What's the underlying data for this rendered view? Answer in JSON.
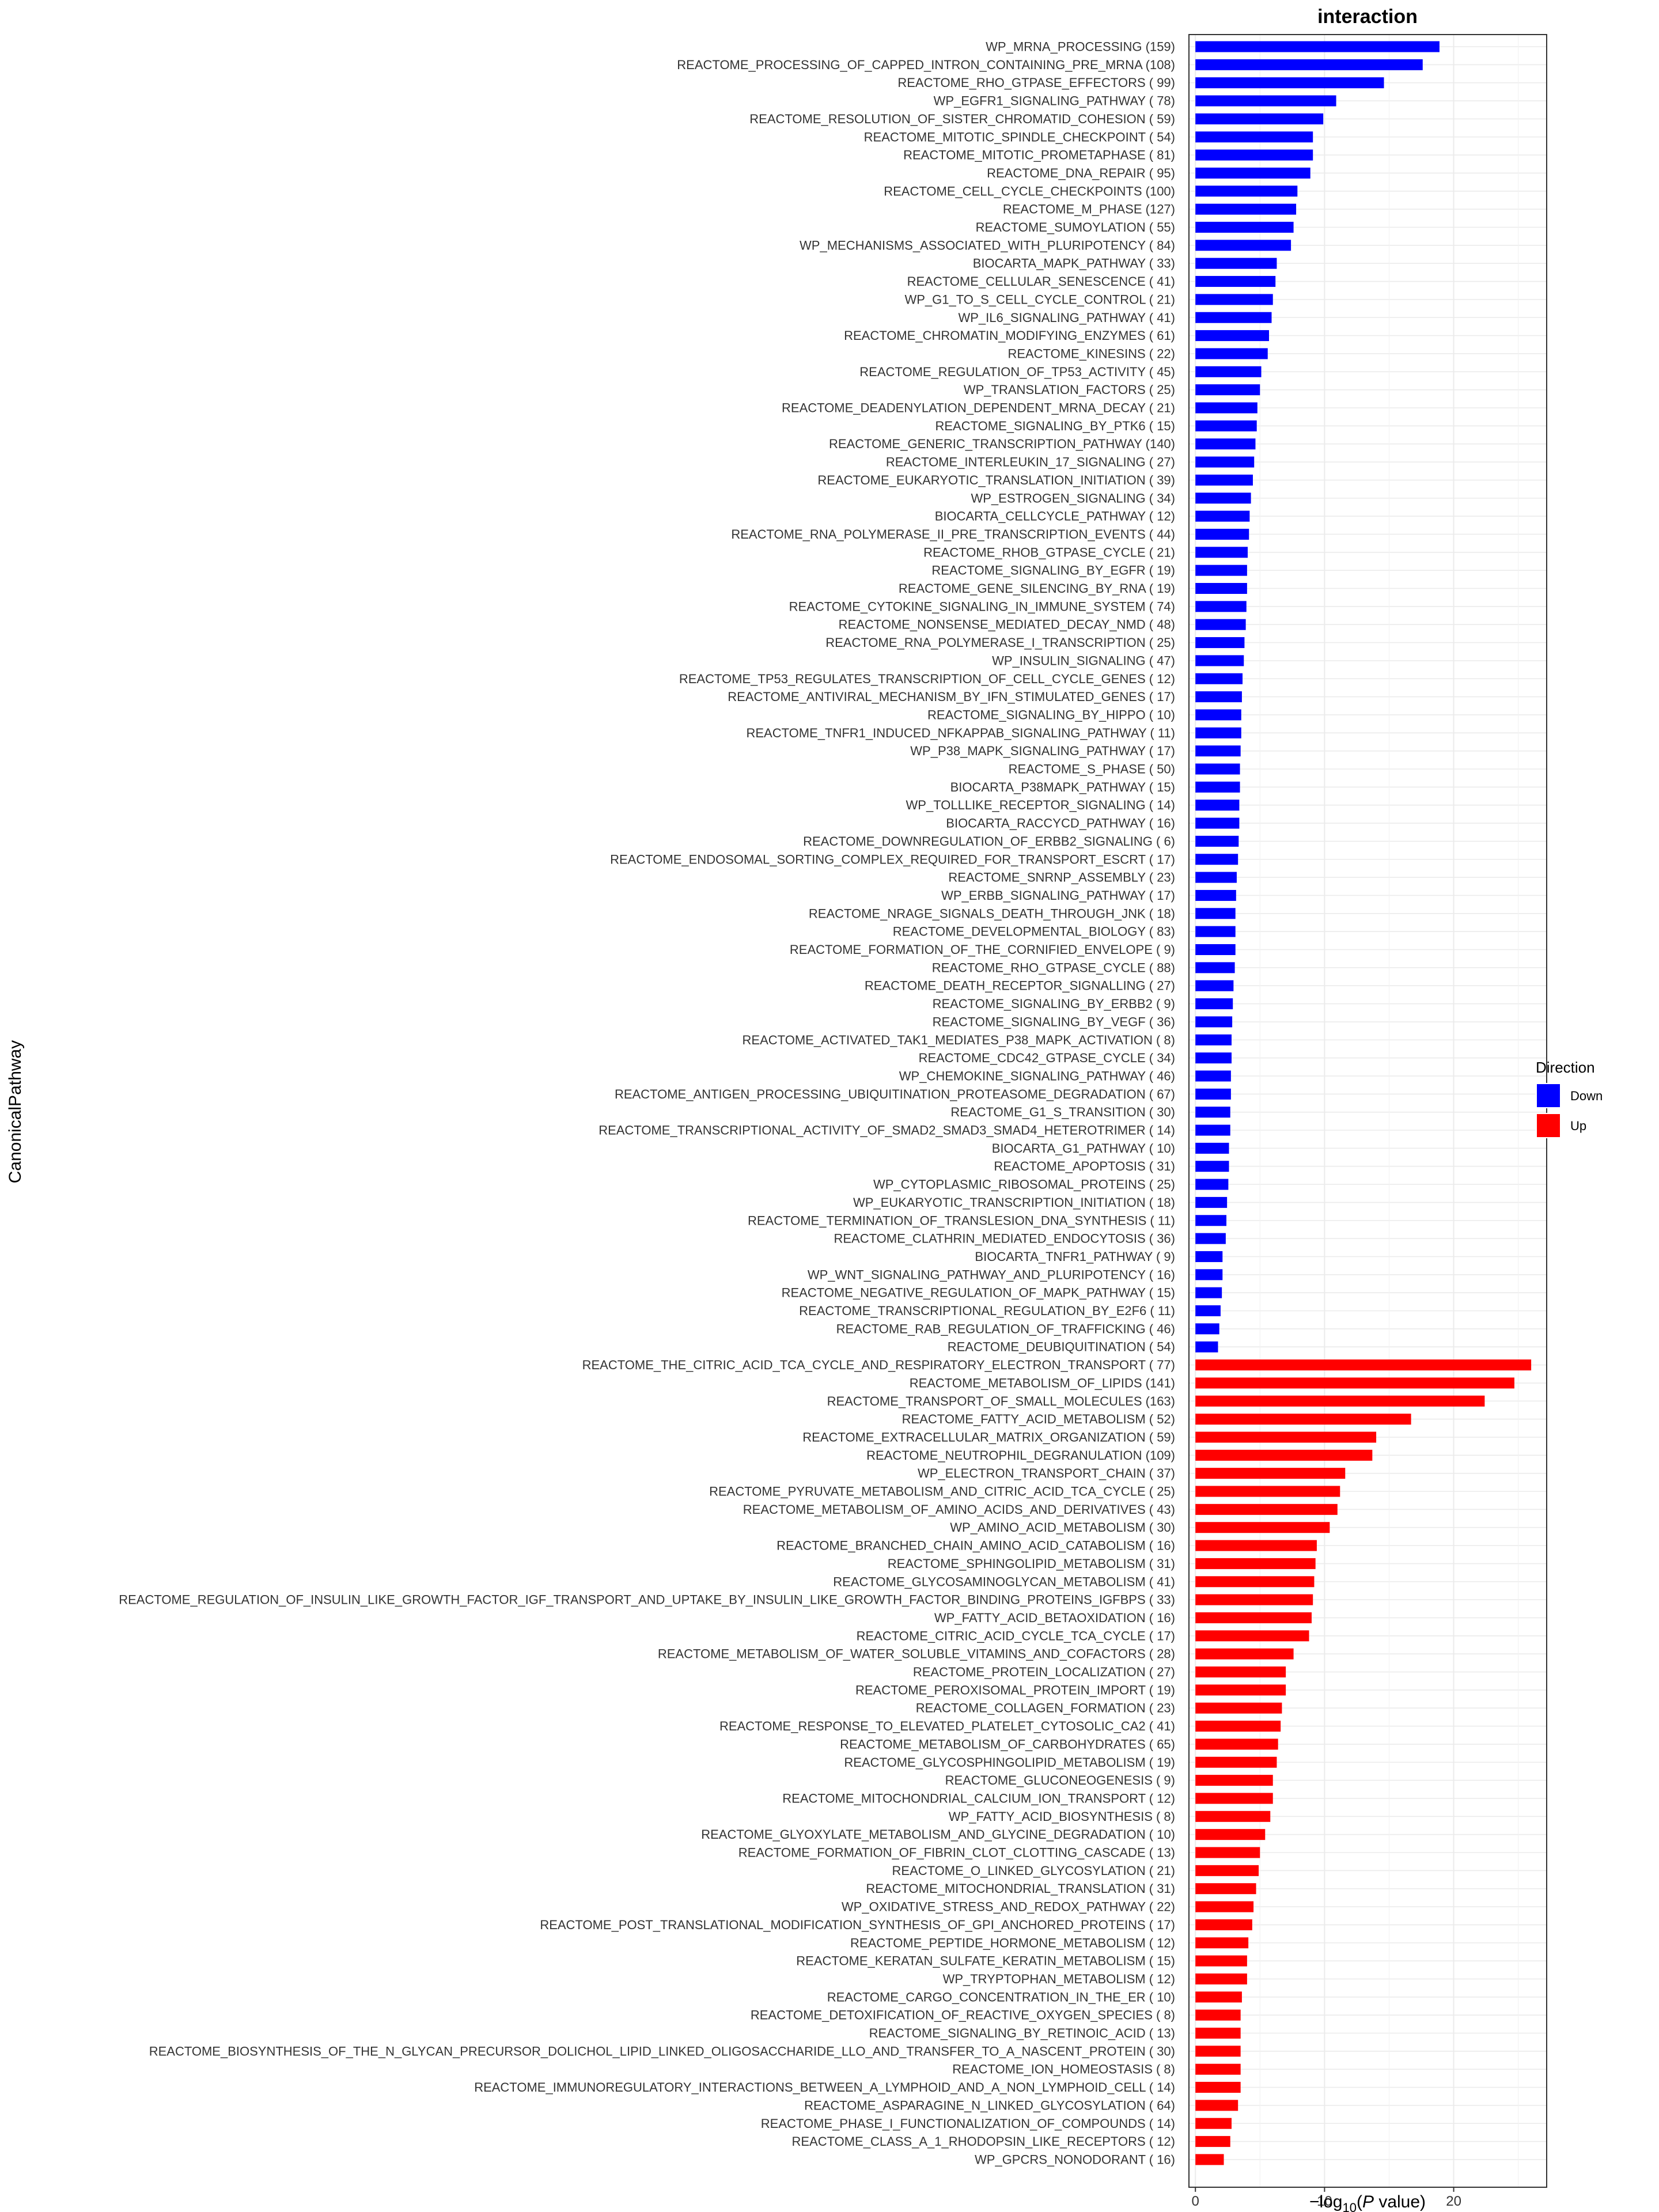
{
  "chart_data": {
    "type": "bar",
    "orientation": "horizontal",
    "title": "interaction",
    "xlabel": "−log10(P value)",
    "xlabel_parts": {
      "prefix": "−log",
      "subscript": "10",
      "open": "(",
      "italic": "P",
      "suffix": " value)"
    },
    "ylabel": "CanonicalPathway",
    "xlim": [
      -0.5,
      27.2
    ],
    "xticks": [
      0,
      10,
      20
    ],
    "grid": true,
    "legend": {
      "title": "Direction",
      "placement": "right",
      "entries": [
        {
          "label": "Down",
          "color": "#0000FF"
        },
        {
          "label": "Up",
          "color": "#FF0000"
        }
      ]
    },
    "series": [
      {
        "name": "Down",
        "color": "#0000FF",
        "categories": [
          "WP_MRNA_PROCESSING (159)",
          "REACTOME_PROCESSING_OF_CAPPED_INTRON_CONTAINING_PRE_MRNA (108)",
          "REACTOME_RHO_GTPASE_EFFECTORS ( 99)",
          "WP_EGFR1_SIGNALING_PATHWAY ( 78)",
          "REACTOME_RESOLUTION_OF_SISTER_CHROMATID_COHESION ( 59)",
          "REACTOME_MITOTIC_SPINDLE_CHECKPOINT ( 54)",
          "REACTOME_MITOTIC_PROMETAPHASE ( 81)",
          "REACTOME_DNA_REPAIR ( 95)",
          "REACTOME_CELL_CYCLE_CHECKPOINTS (100)",
          "REACTOME_M_PHASE (127)",
          "REACTOME_SUMOYLATION ( 55)",
          "WP_MECHANISMS_ASSOCIATED_WITH_PLURIPOTENCY ( 84)",
          "BIOCARTA_MAPK_PATHWAY ( 33)",
          "REACTOME_CELLULAR_SENESCENCE ( 41)",
          "WP_G1_TO_S_CELL_CYCLE_CONTROL ( 21)",
          "WP_IL6_SIGNALING_PATHWAY ( 41)",
          "REACTOME_CHROMATIN_MODIFYING_ENZYMES ( 61)",
          "REACTOME_KINESINS ( 22)",
          "REACTOME_REGULATION_OF_TP53_ACTIVITY ( 45)",
          "WP_TRANSLATION_FACTORS ( 25)",
          "REACTOME_DEADENYLATION_DEPENDENT_MRNA_DECAY ( 21)",
          "REACTOME_SIGNALING_BY_PTK6 ( 15)",
          "REACTOME_GENERIC_TRANSCRIPTION_PATHWAY (140)",
          "REACTOME_INTERLEUKIN_17_SIGNALING ( 27)",
          "REACTOME_EUKARYOTIC_TRANSLATION_INITIATION ( 39)",
          "WP_ESTROGEN_SIGNALING ( 34)",
          "BIOCARTA_CELLCYCLE_PATHWAY ( 12)",
          "REACTOME_RNA_POLYMERASE_II_PRE_TRANSCRIPTION_EVENTS ( 44)",
          "REACTOME_RHOB_GTPASE_CYCLE ( 21)",
          "REACTOME_SIGNALING_BY_EGFR ( 19)",
          "REACTOME_GENE_SILENCING_BY_RNA ( 19)",
          "REACTOME_CYTOKINE_SIGNALING_IN_IMMUNE_SYSTEM ( 74)",
          "REACTOME_NONSENSE_MEDIATED_DECAY_NMD ( 48)",
          "REACTOME_RNA_POLYMERASE_I_TRANSCRIPTION ( 25)",
          "WP_INSULIN_SIGNALING ( 47)",
          "REACTOME_TP53_REGULATES_TRANSCRIPTION_OF_CELL_CYCLE_GENES ( 12)",
          "REACTOME_ANTIVIRAL_MECHANISM_BY_IFN_STIMULATED_GENES ( 17)",
          "REACTOME_SIGNALING_BY_HIPPO ( 10)",
          "REACTOME_TNFR1_INDUCED_NFKAPPAB_SIGNALING_PATHWAY ( 11)",
          "WP_P38_MAPK_SIGNALING_PATHWAY ( 17)",
          "REACTOME_S_PHASE ( 50)",
          "BIOCARTA_P38MAPK_PATHWAY ( 15)",
          "WP_TOLLLIKE_RECEPTOR_SIGNALING ( 14)",
          "BIOCARTA_RACCYCD_PATHWAY ( 16)",
          "REACTOME_DOWNREGULATION_OF_ERBB2_SIGNALING (  6)",
          "REACTOME_ENDOSOMAL_SORTING_COMPLEX_REQUIRED_FOR_TRANSPORT_ESCRT ( 17)",
          "REACTOME_SNRNP_ASSEMBLY ( 23)",
          "WP_ERBB_SIGNALING_PATHWAY ( 17)",
          "REACTOME_NRAGE_SIGNALS_DEATH_THROUGH_JNK ( 18)",
          "REACTOME_DEVELOPMENTAL_BIOLOGY ( 83)",
          "REACTOME_FORMATION_OF_THE_CORNIFIED_ENVELOPE (  9)",
          "REACTOME_RHO_GTPASE_CYCLE ( 88)",
          "REACTOME_DEATH_RECEPTOR_SIGNALLING ( 27)",
          "REACTOME_SIGNALING_BY_ERBB2 (  9)",
          "REACTOME_SIGNALING_BY_VEGF ( 36)",
          "REACTOME_ACTIVATED_TAK1_MEDIATES_P38_MAPK_ACTIVATION (  8)",
          "REACTOME_CDC42_GTPASE_CYCLE ( 34)",
          "WP_CHEMOKINE_SIGNALING_PATHWAY ( 46)",
          "REACTOME_ANTIGEN_PROCESSING_UBIQUITINATION_PROTEASOME_DEGRADATION ( 67)",
          "REACTOME_G1_S_TRANSITION ( 30)",
          "REACTOME_TRANSCRIPTIONAL_ACTIVITY_OF_SMAD2_SMAD3_SMAD4_HETEROTRIMER ( 14)",
          "BIOCARTA_G1_PATHWAY ( 10)",
          "REACTOME_APOPTOSIS ( 31)",
          "WP_CYTOPLASMIC_RIBOSOMAL_PROTEINS ( 25)",
          "WP_EUKARYOTIC_TRANSCRIPTION_INITIATION ( 18)",
          "REACTOME_TERMINATION_OF_TRANSLESION_DNA_SYNTHESIS ( 11)",
          "REACTOME_CLATHRIN_MEDIATED_ENDOCYTOSIS ( 36)",
          "BIOCARTA_TNFR1_PATHWAY (  9)",
          "WP_WNT_SIGNALING_PATHWAY_AND_PLURIPOTENCY ( 16)",
          "REACTOME_NEGATIVE_REGULATION_OF_MAPK_PATHWAY ( 15)",
          "REACTOME_TRANSCRIPTIONAL_REGULATION_BY_E2F6 ( 11)",
          "REACTOME_RAB_REGULATION_OF_TRAFFICKING ( 46)",
          "REACTOME_DEUBIQUITINATION ( 54)"
        ],
        "values": [
          18.9,
          17.6,
          14.6,
          10.9,
          9.9,
          9.1,
          9.1,
          8.9,
          7.9,
          7.8,
          7.6,
          7.4,
          6.3,
          6.2,
          6.0,
          5.9,
          5.7,
          5.6,
          5.1,
          5.0,
          4.8,
          4.75,
          4.65,
          4.55,
          4.45,
          4.3,
          4.2,
          4.15,
          4.05,
          4.0,
          4.0,
          3.95,
          3.9,
          3.8,
          3.75,
          3.65,
          3.6,
          3.55,
          3.55,
          3.5,
          3.45,
          3.45,
          3.4,
          3.4,
          3.35,
          3.3,
          3.2,
          3.15,
          3.1,
          3.1,
          3.1,
          3.05,
          2.95,
          2.9,
          2.85,
          2.8,
          2.8,
          2.75,
          2.75,
          2.7,
          2.7,
          2.6,
          2.6,
          2.55,
          2.45,
          2.4,
          2.35,
          2.1,
          2.1,
          2.05,
          1.95,
          1.85,
          1.75
        ]
      },
      {
        "name": "Up",
        "color": "#FF0000",
        "categories": [
          "REACTOME_THE_CITRIC_ACID_TCA_CYCLE_AND_RESPIRATORY_ELECTRON_TRANSPORT ( 77)",
          "REACTOME_METABOLISM_OF_LIPIDS (141)",
          "REACTOME_TRANSPORT_OF_SMALL_MOLECULES (163)",
          "REACTOME_FATTY_ACID_METABOLISM ( 52)",
          "REACTOME_EXTRACELLULAR_MATRIX_ORGANIZATION ( 59)",
          "REACTOME_NEUTROPHIL_DEGRANULATION (109)",
          "WP_ELECTRON_TRANSPORT_CHAIN ( 37)",
          "REACTOME_PYRUVATE_METABOLISM_AND_CITRIC_ACID_TCA_CYCLE ( 25)",
          "REACTOME_METABOLISM_OF_AMINO_ACIDS_AND_DERIVATIVES ( 43)",
          "WP_AMINO_ACID_METABOLISM ( 30)",
          "REACTOME_BRANCHED_CHAIN_AMINO_ACID_CATABOLISM ( 16)",
          "REACTOME_SPHINGOLIPID_METABOLISM ( 31)",
          "REACTOME_GLYCOSAMINOGLYCAN_METABOLISM ( 41)",
          "REACTOME_REGULATION_OF_INSULIN_LIKE_GROWTH_FACTOR_IGF_TRANSPORT_AND_UPTAKE_BY_INSULIN_LIKE_GROWTH_FACTOR_BINDING_PROTEINS_IGFBPS ( 33)",
          "WP_FATTY_ACID_BETAOXIDATION ( 16)",
          "REACTOME_CITRIC_ACID_CYCLE_TCA_CYCLE ( 17)",
          "REACTOME_METABOLISM_OF_WATER_SOLUBLE_VITAMINS_AND_COFACTORS ( 28)",
          "REACTOME_PROTEIN_LOCALIZATION ( 27)",
          "REACTOME_PEROXISOMAL_PROTEIN_IMPORT ( 19)",
          "REACTOME_COLLAGEN_FORMATION ( 23)",
          "REACTOME_RESPONSE_TO_ELEVATED_PLATELET_CYTOSOLIC_CA2 ( 41)",
          "REACTOME_METABOLISM_OF_CARBOHYDRATES ( 65)",
          "REACTOME_GLYCOSPHINGOLIPID_METABOLISM ( 19)",
          "REACTOME_GLUCONEOGENESIS (  9)",
          "REACTOME_MITOCHONDRIAL_CALCIUM_ION_TRANSPORT ( 12)",
          "WP_FATTY_ACID_BIOSYNTHESIS (  8)",
          "REACTOME_GLYOXYLATE_METABOLISM_AND_GLYCINE_DEGRADATION ( 10)",
          "REACTOME_FORMATION_OF_FIBRIN_CLOT_CLOTTING_CASCADE ( 13)",
          "REACTOME_O_LINKED_GLYCOSYLATION ( 21)",
          "REACTOME_MITOCHONDRIAL_TRANSLATION ( 31)",
          "WP_OXIDATIVE_STRESS_AND_REDOX_PATHWAY ( 22)",
          "REACTOME_POST_TRANSLATIONAL_MODIFICATION_SYNTHESIS_OF_GPI_ANCHORED_PROTEINS ( 17)",
          "REACTOME_PEPTIDE_HORMONE_METABOLISM ( 12)",
          "REACTOME_KERATAN_SULFATE_KERATIN_METABOLISM ( 15)",
          "WP_TRYPTOPHAN_METABOLISM ( 12)",
          "REACTOME_CARGO_CONCENTRATION_IN_THE_ER ( 10)",
          "REACTOME_DETOXIFICATION_OF_REACTIVE_OXYGEN_SPECIES (  8)",
          "REACTOME_SIGNALING_BY_RETINOIC_ACID ( 13)",
          "REACTOME_BIOSYNTHESIS_OF_THE_N_GLYCAN_PRECURSOR_DOLICHOL_LIPID_LINKED_OLIGOSACCHARIDE_LLO_AND_TRANSFER_TO_A_NASCENT_PROTEIN ( 30)",
          "REACTOME_ION_HOMEOSTASIS (  8)",
          "REACTOME_IMMUNOREGULATORY_INTERACTIONS_BETWEEN_A_LYMPHOID_AND_A_NON_LYMPHOID_CELL ( 14)",
          "REACTOME_ASPARAGINE_N_LINKED_GLYCOSYLATION ( 64)",
          "REACTOME_PHASE_I_FUNCTIONALIZATION_OF_COMPOUNDS ( 14)",
          "REACTOME_CLASS_A_1_RHODOPSIN_LIKE_RECEPTORS ( 12)",
          "WP_GPCRS_NONODORANT ( 16)"
        ],
        "values": [
          26.0,
          24.7,
          22.4,
          16.7,
          14.0,
          13.7,
          11.6,
          11.2,
          11.0,
          10.4,
          9.4,
          9.3,
          9.2,
          9.1,
          9.0,
          8.8,
          7.6,
          7.0,
          7.0,
          6.7,
          6.6,
          6.4,
          6.3,
          6.0,
          6.0,
          5.8,
          5.4,
          5.0,
          4.9,
          4.7,
          4.5,
          4.4,
          4.1,
          4.0,
          4.0,
          3.6,
          3.5,
          3.5,
          3.5,
          3.5,
          3.5,
          3.3,
          2.8,
          2.7,
          2.2
        ]
      }
    ]
  }
}
